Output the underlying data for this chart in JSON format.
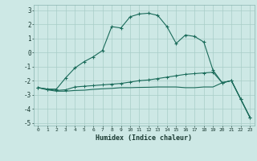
{
  "xlabel": "Humidex (Indice chaleur)",
  "background_color": "#cde8e5",
  "grid_color": "#a8cdc8",
  "line_color": "#1a6b5a",
  "xlim": [
    -0.5,
    23.5
  ],
  "ylim": [
    -5.2,
    3.4
  ],
  "x_ticks": [
    0,
    1,
    2,
    3,
    4,
    5,
    6,
    7,
    8,
    9,
    10,
    11,
    12,
    13,
    14,
    15,
    16,
    17,
    18,
    19,
    20,
    21,
    22,
    23
  ],
  "y_ticks": [
    -5,
    -4,
    -3,
    -2,
    -1,
    0,
    1,
    2,
    3
  ],
  "series1_x": [
    0,
    1,
    2,
    3,
    4,
    5,
    6,
    7,
    8,
    9,
    10,
    11,
    12,
    13,
    14,
    15,
    16,
    17,
    18,
    19,
    20,
    21,
    22,
    23
  ],
  "series1_y": [
    -2.5,
    -2.6,
    -2.6,
    -1.8,
    -1.1,
    -0.65,
    -0.3,
    0.15,
    1.85,
    1.75,
    2.55,
    2.75,
    2.8,
    2.65,
    1.85,
    0.65,
    1.25,
    1.15,
    0.75,
    -1.25,
    -2.15,
    -2.0,
    -3.3,
    -4.6
  ],
  "series2_x": [
    0,
    1,
    2,
    3,
    4,
    5,
    6,
    7,
    8,
    9,
    10,
    11,
    12,
    13,
    14,
    15,
    16,
    17,
    18,
    19,
    20,
    21,
    22,
    23
  ],
  "series2_y": [
    -2.5,
    -2.6,
    -2.7,
    -2.65,
    -2.45,
    -2.4,
    -2.35,
    -2.3,
    -2.25,
    -2.2,
    -2.1,
    -2.0,
    -1.95,
    -1.85,
    -1.75,
    -1.65,
    -1.55,
    -1.5,
    -1.45,
    -1.4,
    -2.15,
    -2.0,
    -3.3,
    -4.6
  ],
  "series3_x": [
    0,
    1,
    2,
    3,
    4,
    5,
    6,
    7,
    8,
    9,
    10,
    11,
    12,
    13,
    14,
    15,
    16,
    17,
    18,
    19,
    20,
    21,
    22,
    23
  ],
  "series3_y": [
    -2.5,
    -2.65,
    -2.75,
    -2.75,
    -2.7,
    -2.68,
    -2.62,
    -2.58,
    -2.55,
    -2.5,
    -2.5,
    -2.48,
    -2.47,
    -2.45,
    -2.45,
    -2.45,
    -2.5,
    -2.5,
    -2.45,
    -2.45,
    -2.15,
    -2.0,
    -3.3,
    -4.6
  ]
}
